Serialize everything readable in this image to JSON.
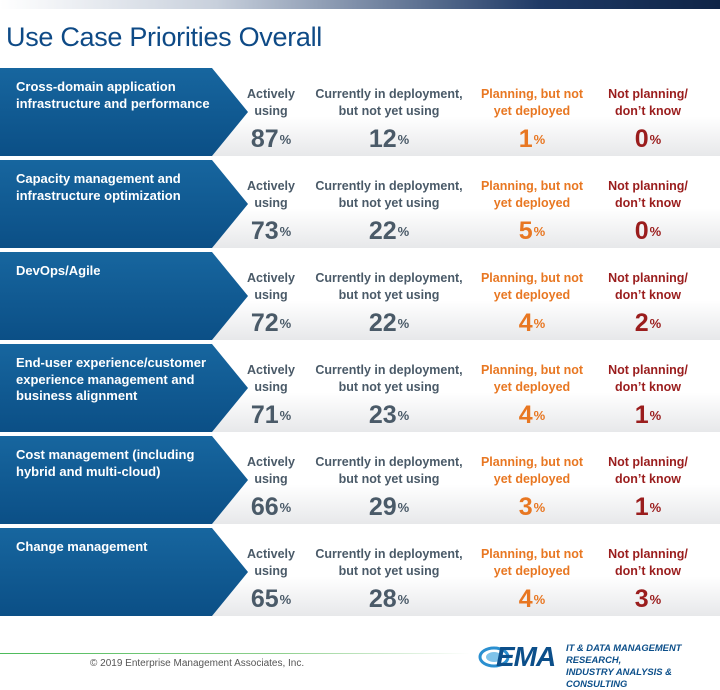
{
  "page": {
    "title": "Use Case Priorities Overall",
    "copyright": "© 2019 Enterprise Management Associates, Inc.",
    "logo_text": "EMA",
    "tagline_lines": [
      "IT & DATA MANAGEMENT RESEARCH,",
      "INDUSTRY ANALYSIS & CONSULTING"
    ]
  },
  "colors": {
    "label_bg": "#0b4f86",
    "actively": "#4a5a68",
    "deployment": "#4a5a68",
    "planning": "#e87722",
    "not_planning": "#9a1d1d",
    "title": "#0e4a86"
  },
  "chart_data": {
    "type": "table",
    "title": "Use Case Priorities Overall",
    "unit": "%",
    "columns": [
      {
        "key": "actively",
        "lines": [
          "Actively",
          "using"
        ]
      },
      {
        "key": "deployment",
        "lines": [
          "Currently in deployment,",
          "but not yet using"
        ]
      },
      {
        "key": "planning",
        "lines": [
          "Planning, but not",
          "yet deployed"
        ]
      },
      {
        "key": "not_planning",
        "lines": [
          "Not planning/",
          "don’t know"
        ]
      }
    ],
    "rows": [
      {
        "label": "Cross-domain application infrastructure and performance",
        "values": [
          87,
          12,
          1,
          0
        ]
      },
      {
        "label": "Capacity management and infrastructure optimization",
        "values": [
          73,
          22,
          5,
          0
        ]
      },
      {
        "label": "DevOps/Agile",
        "values": [
          72,
          22,
          4,
          2
        ]
      },
      {
        "label": "End-user experience/customer experience management and business alignment",
        "values": [
          71,
          23,
          4,
          1
        ]
      },
      {
        "label": "Cost management (including hybrid and multi-cloud)",
        "values": [
          66,
          29,
          3,
          1
        ]
      },
      {
        "label": "Change management",
        "values": [
          65,
          28,
          4,
          3
        ]
      }
    ]
  }
}
